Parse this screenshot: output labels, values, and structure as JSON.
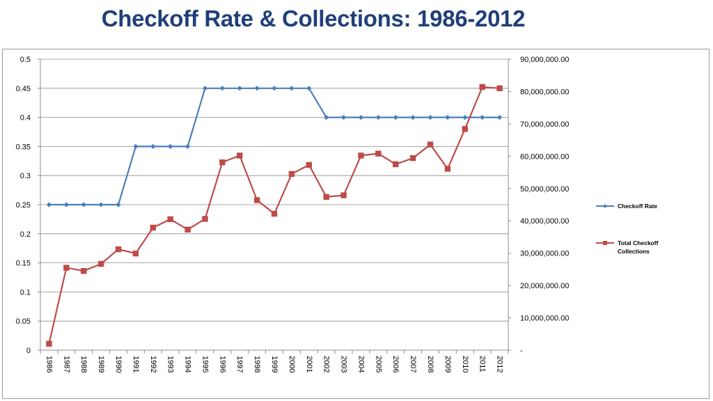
{
  "title": "Checkoff Rate & Collections: 1986-2012",
  "chart_data": {
    "type": "line",
    "x": [
      "1986",
      "1987",
      "1988",
      "1989",
      "1990",
      "1991",
      "1992",
      "1993",
      "1994",
      "1995",
      "1996",
      "1997",
      "1998",
      "1999",
      "2000",
      "2001",
      "2002",
      "2003",
      "2004",
      "2005",
      "2006",
      "2007",
      "2008",
      "2009",
      "2010",
      "2011",
      "2012"
    ],
    "series": [
      {
        "name": "Checkoff Rate",
        "axis": "left",
        "color": "#4a7ebb",
        "marker": "diamond",
        "values": [
          0.25,
          0.25,
          0.25,
          0.25,
          0.25,
          0.35,
          0.35,
          0.35,
          0.35,
          0.45,
          0.45,
          0.45,
          0.45,
          0.45,
          0.45,
          0.45,
          0.4,
          0.4,
          0.4,
          0.4,
          0.4,
          0.4,
          0.4,
          0.4,
          0.4,
          0.4,
          0.4
        ]
      },
      {
        "name": "Total Checkoff Collections",
        "axis": "right",
        "color": "#be4b48",
        "marker": "square",
        "values": [
          2000000,
          25500000,
          24500000,
          26700000,
          31200000,
          29900000,
          37900000,
          40500000,
          37300000,
          40600000,
          58100000,
          60200000,
          46400000,
          42200000,
          54500000,
          57300000,
          47400000,
          47900000,
          60200000,
          60800000,
          57500000,
          59400000,
          63600000,
          56100000,
          68400000,
          81400000,
          81000000
        ]
      }
    ],
    "y_left": {
      "lim": [
        0,
        0.5
      ],
      "ticks": [
        0,
        0.05,
        0.1,
        0.15,
        0.2,
        0.25,
        0.3,
        0.35,
        0.4,
        0.45,
        0.5
      ],
      "tick_labels": [
        "0",
        "0.05",
        "0.1",
        "0.15",
        "0.2",
        "0.25",
        "0.3",
        "0.35",
        "0.4",
        "0.45",
        "0.5"
      ]
    },
    "y_right": {
      "lim": [
        0,
        90000000
      ],
      "ticks": [
        0,
        10000000,
        20000000,
        30000000,
        40000000,
        50000000,
        60000000,
        70000000,
        80000000,
        90000000
      ],
      "tick_labels": [
        "-",
        "10,000,000.00",
        "20,000,000.00",
        "30,000,000.00",
        "40,000,000.00",
        "50,000,000.00",
        "60,000,000.00",
        "70,000,000.00",
        "80,000,000.00",
        "90,000,000.00"
      ]
    },
    "grid": true,
    "legend": {
      "position": "right",
      "entries": [
        {
          "lines": [
            "Checkoff Rate"
          ],
          "color": "#4a7ebb",
          "marker": "diamond"
        },
        {
          "lines": [
            "Total Checkoff",
            "Collections"
          ],
          "color": "#be4b48",
          "marker": "square"
        }
      ]
    }
  }
}
